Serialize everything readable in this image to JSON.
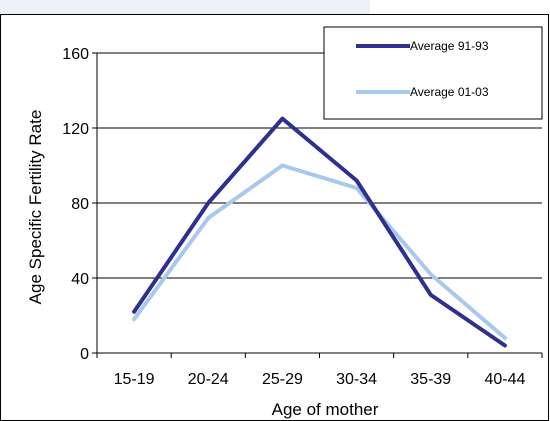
{
  "chart_data": {
    "type": "line",
    "title": "",
    "xlabel": "Age of mother",
    "ylabel": "Age Specific Fertility Rate",
    "categories": [
      "15-19",
      "20-24",
      "25-29",
      "30-34",
      "35-39",
      "40-44"
    ],
    "ylim": [
      0,
      160
    ],
    "yticks": [
      0,
      40,
      80,
      120,
      160
    ],
    "grid": "horizontal",
    "legend_position": "top-right",
    "series": [
      {
        "name": "Average 91-93",
        "color": "#2e2f8f",
        "values": [
          22,
          80,
          125,
          92,
          31,
          4
        ]
      },
      {
        "name": "Average 01-03",
        "color": "#a8c8ee",
        "values": [
          18,
          72,
          100,
          88,
          42,
          8
        ]
      }
    ]
  }
}
